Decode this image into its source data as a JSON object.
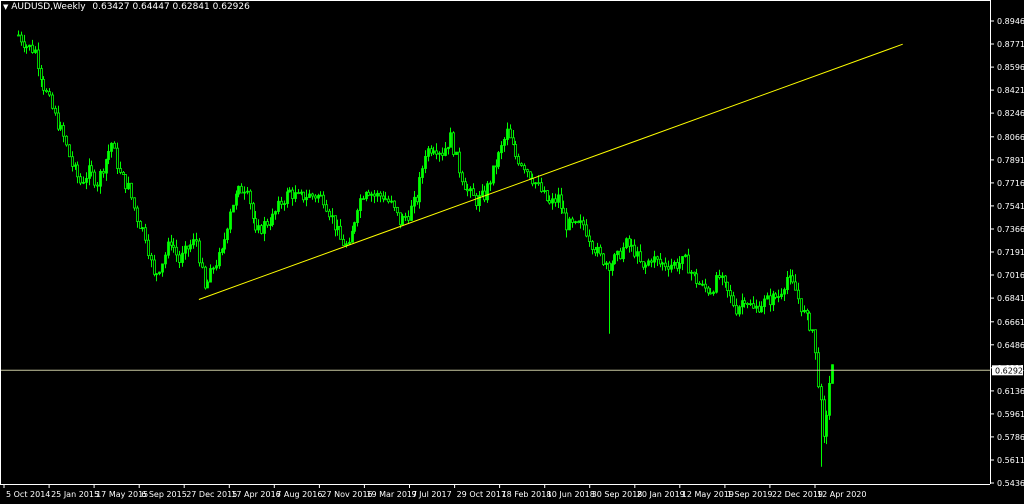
{
  "header": {
    "symbol": "AUDUSD,Weekly",
    "ohlc": "0.63427 0.64447 0.62841 0.62926"
  },
  "colors": {
    "background": "#000000",
    "candles": "#00ff00",
    "trendline": "#ffff00",
    "price_line": "#c8c8a0",
    "axis": "#ffffff",
    "current_price_box": "#ffffff"
  },
  "chart_data": {
    "type": "candlestick",
    "title": "AUDUSD,Weekly",
    "y_ticks": [
      "0.89460",
      "0.87710",
      "0.85960",
      "0.84210",
      "0.82460",
      "0.80660",
      "0.78910",
      "0.77160",
      "0.75410",
      "0.73660",
      "0.71910",
      "0.70160",
      "0.68410",
      "0.66610",
      "0.64860",
      "0.63110",
      "0.61360",
      "0.59610",
      "0.57860",
      "0.56110",
      "0.54360"
    ],
    "x_ticks": [
      "5 Oct 2014",
      "25 Jan 2015",
      "17 May 2015",
      "6 Sep 2015",
      "27 Dec 2015",
      "17 Apr 2016",
      "7 Aug 2016",
      "27 Nov 2016",
      "19 Mar 2017",
      "9 Jul 2017",
      "29 Oct 2017",
      "18 Feb 2018",
      "10 Jun 2018",
      "30 Sep 2018",
      "20 Jan 2019",
      "12 May 2019",
      "1 Sep 2019",
      "22 Dec 2019",
      "12 Apr 2020"
    ],
    "ylim": [
      0.5436,
      0.9036
    ],
    "current_price": "0.62926",
    "close_path": [
      [
        "2014-10-05",
        0.884
      ],
      [
        "2014-10-26",
        0.876
      ],
      [
        "2014-11-16",
        0.872
      ],
      [
        "2014-12-07",
        0.845
      ],
      [
        "2015-01-04",
        0.822
      ],
      [
        "2015-01-25",
        0.806
      ],
      [
        "2015-02-15",
        0.785
      ],
      [
        "2015-03-08",
        0.772
      ],
      [
        "2015-03-29",
        0.78
      ],
      [
        "2015-04-19",
        0.772
      ],
      [
        "2015-05-10",
        0.79
      ],
      [
        "2015-05-24",
        0.802
      ],
      [
        "2015-06-14",
        0.778
      ],
      [
        "2015-07-05",
        0.768
      ],
      [
        "2015-07-26",
        0.745
      ],
      [
        "2015-08-16",
        0.732
      ],
      [
        "2015-09-06",
        0.7
      ],
      [
        "2015-09-27",
        0.712
      ],
      [
        "2015-10-18",
        0.728
      ],
      [
        "2015-11-08",
        0.712
      ],
      [
        "2015-11-29",
        0.722
      ],
      [
        "2015-12-20",
        0.728
      ],
      [
        "2016-01-10",
        0.69
      ],
      [
        "2016-01-31",
        0.708
      ],
      [
        "2016-02-21",
        0.718
      ],
      [
        "2016-03-13",
        0.752
      ],
      [
        "2016-04-03",
        0.765
      ],
      [
        "2016-04-24",
        0.77
      ],
      [
        "2016-05-15",
        0.732
      ],
      [
        "2016-06-05",
        0.74
      ],
      [
        "2016-06-26",
        0.745
      ],
      [
        "2016-07-17",
        0.757
      ],
      [
        "2016-08-07",
        0.765
      ],
      [
        "2016-08-28",
        0.76
      ],
      [
        "2016-09-18",
        0.762
      ],
      [
        "2016-10-09",
        0.762
      ],
      [
        "2016-10-30",
        0.76
      ],
      [
        "2016-11-20",
        0.745
      ],
      [
        "2016-12-11",
        0.728
      ],
      [
        "2017-01-01",
        0.722
      ],
      [
        "2017-01-22",
        0.755
      ],
      [
        "2017-02-12",
        0.768
      ],
      [
        "2017-03-05",
        0.762
      ],
      [
        "2017-03-26",
        0.762
      ],
      [
        "2017-04-16",
        0.755
      ],
      [
        "2017-05-07",
        0.742
      ],
      [
        "2017-05-28",
        0.748
      ],
      [
        "2017-06-18",
        0.76
      ],
      [
        "2017-07-09",
        0.795
      ],
      [
        "2017-07-30",
        0.8
      ],
      [
        "2017-08-20",
        0.795
      ],
      [
        "2017-09-10",
        0.806
      ],
      [
        "2017-10-01",
        0.782
      ],
      [
        "2017-10-22",
        0.765
      ],
      [
        "2017-11-12",
        0.758
      ],
      [
        "2017-12-03",
        0.762
      ],
      [
        "2017-12-24",
        0.78
      ],
      [
        "2018-01-14",
        0.798
      ],
      [
        "2018-01-28",
        0.81
      ],
      [
        "2018-02-18",
        0.792
      ],
      [
        "2018-03-11",
        0.785
      ],
      [
        "2018-04-01",
        0.775
      ],
      [
        "2018-04-22",
        0.765
      ],
      [
        "2018-05-13",
        0.755
      ],
      [
        "2018-06-03",
        0.76
      ],
      [
        "2018-06-24",
        0.74
      ],
      [
        "2018-07-15",
        0.738
      ],
      [
        "2018-08-05",
        0.74
      ],
      [
        "2018-08-26",
        0.726
      ],
      [
        "2018-09-16",
        0.715
      ],
      [
        "2018-10-07",
        0.71
      ],
      [
        "2018-10-28",
        0.715
      ],
      [
        "2018-11-18",
        0.725
      ],
      [
        "2018-12-09",
        0.72
      ],
      [
        "2018-12-30",
        0.705
      ],
      [
        "2019-01-20",
        0.715
      ],
      [
        "2019-02-10",
        0.71
      ],
      [
        "2019-03-03",
        0.71
      ],
      [
        "2019-03-24",
        0.71
      ],
      [
        "2019-04-14",
        0.712
      ],
      [
        "2019-05-05",
        0.7
      ],
      [
        "2019-05-26",
        0.692
      ],
      [
        "2019-06-16",
        0.69
      ],
      [
        "2019-07-07",
        0.7
      ],
      [
        "2019-07-28",
        0.688
      ],
      [
        "2019-08-18",
        0.676
      ],
      [
        "2019-09-08",
        0.685
      ],
      [
        "2019-09-29",
        0.675
      ],
      [
        "2019-10-20",
        0.68
      ],
      [
        "2019-11-10",
        0.683
      ],
      [
        "2019-12-01",
        0.686
      ],
      [
        "2019-12-22",
        0.7
      ],
      [
        "2020-01-12",
        0.69
      ],
      [
        "2020-02-02",
        0.672
      ],
      [
        "2020-02-23",
        0.66
      ],
      [
        "2020-03-15",
        0.602
      ],
      [
        "2020-03-22",
        0.575
      ],
      [
        "2020-04-05",
        0.62
      ],
      [
        "2020-04-12",
        0.63
      ]
    ],
    "trendline": [
      [
        "2015-12-27",
        0.683
      ],
      [
        "2020-10-04",
        0.877
      ]
    ],
    "extreme_lows": [
      [
        "2018-10-07",
        0.657
      ],
      [
        "2020-03-15",
        0.556
      ]
    ]
  }
}
